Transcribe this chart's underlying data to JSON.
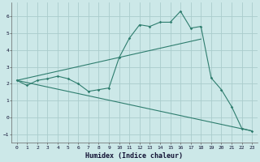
{
  "xlabel": "Humidex (Indice chaleur)",
  "bg_color": "#cce8e8",
  "grid_color": "#aacccc",
  "line_color": "#2e7d6e",
  "xlim": [
    -0.5,
    23.5
  ],
  "ylim": [
    -1.5,
    6.8
  ],
  "xticks": [
    0,
    1,
    2,
    3,
    4,
    5,
    6,
    7,
    8,
    9,
    10,
    11,
    12,
    13,
    14,
    15,
    16,
    17,
    18,
    19,
    20,
    21,
    22,
    23
  ],
  "yticks": [
    -1,
    0,
    1,
    2,
    3,
    4,
    5,
    6
  ],
  "line1_x": [
    0,
    1,
    2,
    3,
    4,
    5,
    6,
    7,
    8,
    9,
    10,
    11,
    12,
    13,
    14,
    15,
    16,
    17,
    18,
    19,
    20,
    21,
    22,
    23
  ],
  "line1_y": [
    2.2,
    1.9,
    2.2,
    2.3,
    2.45,
    2.3,
    2.0,
    1.55,
    1.65,
    1.75,
    3.55,
    4.7,
    5.5,
    5.4,
    5.65,
    5.65,
    6.3,
    5.3,
    5.4,
    2.35,
    1.65,
    0.65,
    -0.65,
    -0.8
  ],
  "line2_x": [
    0,
    18
  ],
  "line2_y": [
    2.2,
    4.65
  ],
  "line3_x": [
    0,
    23
  ],
  "line3_y": [
    2.2,
    -0.8
  ]
}
